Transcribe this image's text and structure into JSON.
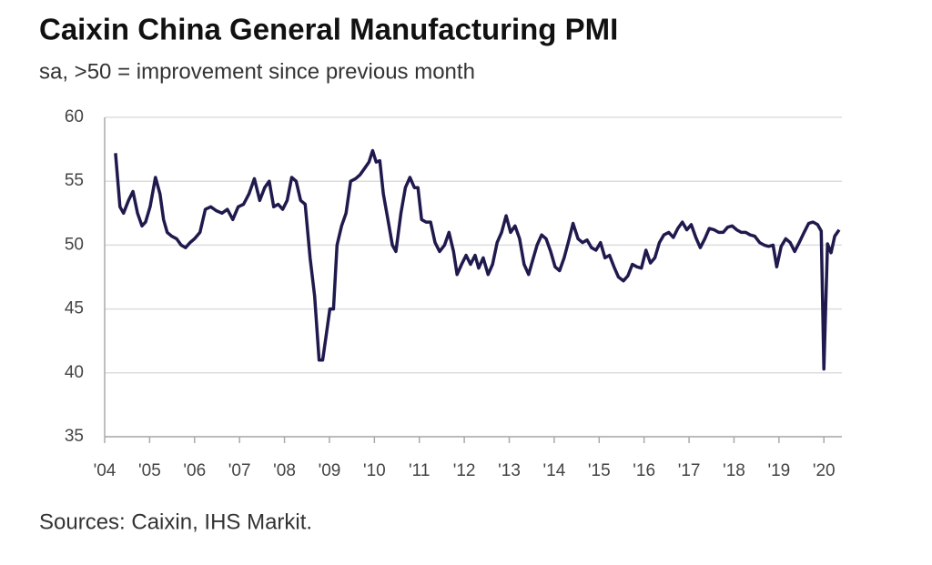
{
  "chart_data": {
    "type": "line",
    "title": "Caixin China General Manufacturing PMI",
    "subtitle": "sa, >50 = improvement since previous month",
    "source": "Sources: Caixin, IHS Markit.",
    "ylim": [
      35,
      60
    ],
    "yticks": [
      35,
      40,
      45,
      50,
      55,
      60
    ],
    "grid": true,
    "xlim": [
      2004,
      2020.4
    ],
    "xticks": [
      {
        "value": 2004,
        "label": "'04"
      },
      {
        "value": 2005,
        "label": "'05"
      },
      {
        "value": 2006,
        "label": "'06"
      },
      {
        "value": 2007,
        "label": "'07"
      },
      {
        "value": 2008,
        "label": "'08"
      },
      {
        "value": 2009,
        "label": "'09"
      },
      {
        "value": 2010,
        "label": "'10"
      },
      {
        "value": 2011,
        "label": "'11"
      },
      {
        "value": 2012,
        "label": "'12"
      },
      {
        "value": 2013,
        "label": "'13"
      },
      {
        "value": 2014,
        "label": "'14"
      },
      {
        "value": 2015,
        "label": "'15"
      },
      {
        "value": 2016,
        "label": "'16"
      },
      {
        "value": 2017,
        "label": "'17"
      },
      {
        "value": 2018,
        "label": "'18"
      },
      {
        "value": 2019,
        "label": "'19"
      },
      {
        "value": 2020,
        "label": "'20"
      }
    ],
    "x": [
      2004.24,
      2004.34,
      2004.42,
      2004.53,
      2004.63,
      2004.73,
      2004.83,
      2004.91,
      2005.01,
      2005.13,
      2005.23,
      2005.31,
      2005.39,
      2005.49,
      2005.6,
      2005.7,
      2005.8,
      2005.9,
      2006.0,
      2006.12,
      2006.24,
      2006.36,
      2006.48,
      2006.61,
      2006.73,
      2006.85,
      2006.97,
      2007.09,
      2007.21,
      2007.33,
      2007.45,
      2007.56,
      2007.66,
      2007.76,
      2007.86,
      2007.96,
      2008.06,
      2008.16,
      2008.26,
      2008.36,
      2008.46,
      2008.57,
      2008.67,
      2008.77,
      2008.85,
      2008.93,
      2009.01,
      2009.09,
      2009.17,
      2009.27,
      2009.37,
      2009.47,
      2009.58,
      2009.68,
      2009.78,
      2009.88,
      2009.96,
      2010.04,
      2010.12,
      2010.2,
      2010.3,
      2010.4,
      2010.48,
      2010.59,
      2010.69,
      2010.79,
      2010.89,
      2010.97,
      2011.05,
      2011.15,
      2011.25,
      2011.35,
      2011.45,
      2011.56,
      2011.66,
      2011.76,
      2011.84,
      2011.94,
      2012.04,
      2012.14,
      2012.24,
      2012.32,
      2012.42,
      2012.53,
      2012.63,
      2012.73,
      2012.83,
      2012.93,
      2013.03,
      2013.13,
      2013.23,
      2013.33,
      2013.43,
      2013.52,
      2013.62,
      2013.72,
      2013.82,
      2013.92,
      2014.02,
      2014.12,
      2014.22,
      2014.32,
      2014.42,
      2014.53,
      2014.63,
      2014.73,
      2014.83,
      2014.93,
      2015.03,
      2015.13,
      2015.23,
      2015.33,
      2015.43,
      2015.54,
      2015.64,
      2015.74,
      2015.84,
      2015.94,
      2016.04,
      2016.14,
      2016.24,
      2016.34,
      2016.44,
      2016.55,
      2016.65,
      2016.75,
      2016.85,
      2016.95,
      2017.05,
      2017.15,
      2017.25,
      2017.35,
      2017.45,
      2017.56,
      2017.66,
      2017.76,
      2017.86,
      2017.96,
      2018.06,
      2018.16,
      2018.26,
      2018.36,
      2018.46,
      2018.57,
      2018.67,
      2018.77,
      2018.87,
      2018.95,
      2019.05,
      2019.15,
      2019.25,
      2019.35,
      2019.45,
      2019.56,
      2019.66,
      2019.76,
      2019.86,
      2019.94,
      2020.0,
      2020.08,
      2020.16,
      2020.24,
      2020.34
    ],
    "series": [
      {
        "name": "Caixin China General Manufacturing PMI",
        "color": "#1f1a4d",
        "values": [
          57.2,
          53,
          52.5,
          53.5,
          54.2,
          52.5,
          51.5,
          51.8,
          53,
          55.3,
          54,
          52,
          51,
          50.7,
          50.5,
          50,
          49.8,
          50.2,
          50.5,
          51,
          52.8,
          53,
          52.7,
          52.5,
          52.8,
          52,
          53,
          53.2,
          54,
          55.2,
          53.5,
          54.5,
          55,
          53,
          53.2,
          52.8,
          53.5,
          55.3,
          55,
          53.5,
          53.2,
          49,
          46,
          41,
          41,
          43,
          45,
          45,
          50,
          51.5,
          52.5,
          55,
          55.2,
          55.5,
          56,
          56.5,
          57.4,
          56.5,
          56.6,
          54,
          52,
          50,
          49.5,
          52.5,
          54.5,
          55.3,
          54.5,
          54.5,
          52,
          51.8,
          51.8,
          50.2,
          49.5,
          50,
          51,
          49.5,
          47.7,
          48.5,
          49.2,
          48.5,
          49.2,
          48.2,
          49,
          47.7,
          48.5,
          50.2,
          51,
          52.3,
          51,
          51.5,
          50.5,
          48.5,
          47.7,
          48.8,
          50,
          50.8,
          50.5,
          49.5,
          48.3,
          48,
          49,
          50.3,
          51.7,
          50.5,
          50.2,
          50.4,
          49.8,
          49.6,
          50.2,
          49,
          49.2,
          48.3,
          47.5,
          47.2,
          47.6,
          48.5,
          48.3,
          48.2,
          49.6,
          48.6,
          49,
          50.2,
          50.8,
          51,
          50.6,
          51.3,
          51.8,
          51.2,
          51.6,
          50.6,
          49.8,
          50.5,
          51.3,
          51.2,
          51,
          51,
          51.4,
          51.5,
          51.2,
          51,
          51,
          50.8,
          50.7,
          50.2,
          50,
          49.9,
          50,
          48.3,
          49.9,
          50.5,
          50.2,
          49.5,
          50.2,
          51,
          51.7,
          51.8,
          51.6,
          51.1,
          40.3,
          50.1,
          49.4,
          50.7,
          51.2
        ]
      }
    ]
  }
}
